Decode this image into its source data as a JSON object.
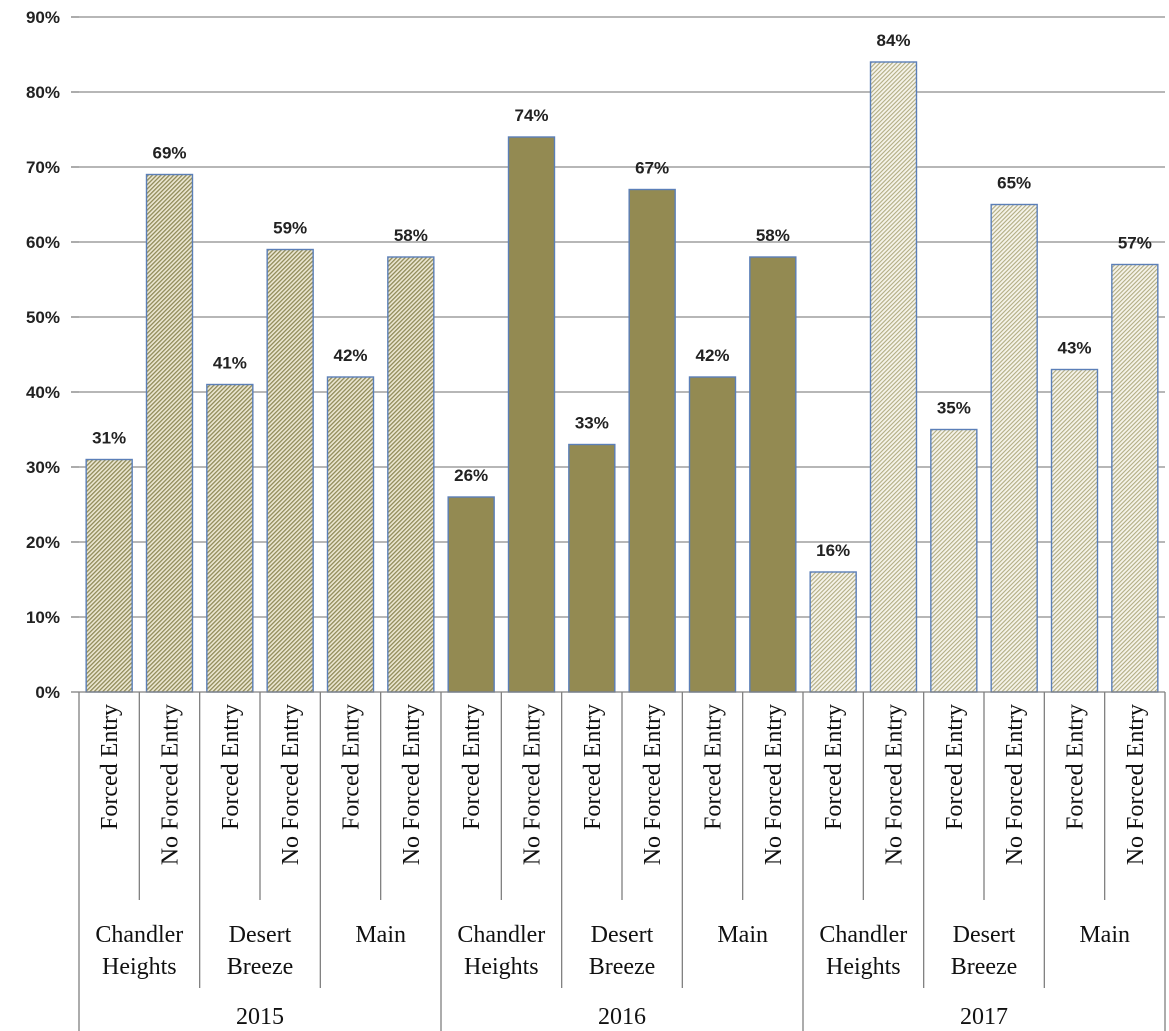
{
  "chart_data": {
    "type": "bar",
    "ylim": [
      0,
      90
    ],
    "yticks": [
      "0%",
      "10%",
      "20%",
      "30%",
      "40%",
      "50%",
      "60%",
      "70%",
      "80%",
      "90%"
    ],
    "grid": true,
    "years": [
      {
        "label": "2015",
        "style": "hatched-tan"
      },
      {
        "label": "2016",
        "style": "solid-olive"
      },
      {
        "label": "2017",
        "style": "hatched-light"
      }
    ],
    "locations": [
      {
        "lines": [
          "Chandler",
          "Heights"
        ]
      },
      {
        "lines": [
          "Desert",
          "Breeze"
        ]
      },
      {
        "lines": [
          "Main"
        ]
      }
    ],
    "entry_types": [
      "Forced Entry",
      "No Forced Entry"
    ],
    "bars": [
      {
        "year": "2015",
        "location": "Chandler Heights",
        "type": "Forced Entry",
        "value": 31,
        "label": "31%"
      },
      {
        "year": "2015",
        "location": "Chandler Heights",
        "type": "No Forced Entry",
        "value": 69,
        "label": "69%"
      },
      {
        "year": "2015",
        "location": "Desert Breeze",
        "type": "Forced Entry",
        "value": 41,
        "label": "41%"
      },
      {
        "year": "2015",
        "location": "Desert Breeze",
        "type": "No Forced Entry",
        "value": 59,
        "label": "59%"
      },
      {
        "year": "2015",
        "location": "Main",
        "type": "Forced Entry",
        "value": 42,
        "label": "42%"
      },
      {
        "year": "2015",
        "location": "Main",
        "type": "No Forced Entry",
        "value": 58,
        "label": "58%"
      },
      {
        "year": "2016",
        "location": "Chandler Heights",
        "type": "Forced Entry",
        "value": 26,
        "label": "26%"
      },
      {
        "year": "2016",
        "location": "Chandler Heights",
        "type": "No Forced Entry",
        "value": 74,
        "label": "74%"
      },
      {
        "year": "2016",
        "location": "Desert Breeze",
        "type": "Forced Entry",
        "value": 33,
        "label": "33%"
      },
      {
        "year": "2016",
        "location": "Desert Breeze",
        "type": "No Forced Entry",
        "value": 67,
        "label": "67%"
      },
      {
        "year": "2016",
        "location": "Main",
        "type": "Forced Entry",
        "value": 42,
        "label": "42%"
      },
      {
        "year": "2016",
        "location": "Main",
        "type": "No Forced Entry",
        "value": 58,
        "label": "58%"
      },
      {
        "year": "2017",
        "location": "Chandler Heights",
        "type": "Forced Entry",
        "value": 16,
        "label": "16%"
      },
      {
        "year": "2017",
        "location": "Chandler Heights",
        "type": "No Forced Entry",
        "value": 84,
        "label": "84%"
      },
      {
        "year": "2017",
        "location": "Desert Breeze",
        "type": "Forced Entry",
        "value": 35,
        "label": "35%"
      },
      {
        "year": "2017",
        "location": "Desert Breeze",
        "type": "No Forced Entry",
        "value": 65,
        "label": "65%"
      },
      {
        "year": "2017",
        "location": "Main",
        "type": "Forced Entry",
        "value": 43,
        "label": "43%"
      },
      {
        "year": "2017",
        "location": "Main",
        "type": "No Forced Entry",
        "value": 57,
        "label": "57%"
      }
    ],
    "colors": {
      "hatched_tan_bg": "#ece7d2",
      "hatched_tan_line": "#8f8a58",
      "solid_olive": "#938a52",
      "hatched_light_bg": "#f6f4ea",
      "hatched_light_line": "#b1ac82",
      "bar_outline": "#5b7fb8",
      "grid": "#8c8c8c",
      "axis": "#808080"
    }
  }
}
